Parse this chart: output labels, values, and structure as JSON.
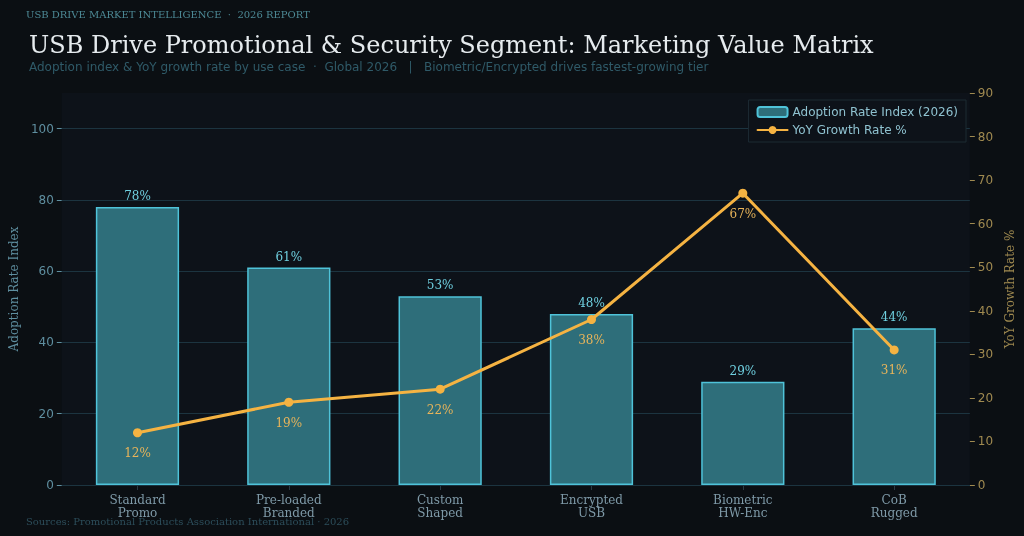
{
  "chart_data": {
    "type": "bar",
    "title": "USB Drive Promotional & Security Segment: Marketing Value Matrix",
    "subtitle": "Adoption index & YoY growth rate by use case  ·  Global 2026   |   Biometric/Encrypted drives fastest-growing tier",
    "annotations": [
      "USB DRIVE MARKET INTELLIGENCE  ·  2026 REPORT",
      "Sources: Promotional Products Association International · 2026"
    ],
    "ylabel": "Adoption Rate Index",
    "y2label": "YoY Growth Rate %",
    "categories": [
      "Standard\nPromo",
      "Pre-loaded\nBranded",
      "Custom\nShaped",
      "Encrypted\nUSB",
      "Biometric\nHW-Enc",
      "CoB\nRugged"
    ],
    "series": [
      {
        "name": "Adoption Rate Index (2026)",
        "color": "#2e6e7a",
        "values": [
          78,
          61,
          53,
          48,
          29,
          44
        ],
        "value_labels": [
          "78%",
          "61%",
          "53%",
          "48%",
          "29%",
          "44%"
        ]
      },
      {
        "name": "YoY Growth Rate %",
        "type": "line",
        "axis": "y2",
        "color": "#f5b342",
        "values": [
          12,
          19,
          22,
          38,
          67,
          31
        ],
        "value_labels": [
          "12%",
          "19%",
          "22%",
          "38%",
          "67%",
          "31%"
        ]
      }
    ],
    "ylim": [
      0,
      110
    ],
    "yticks": [
      0,
      20,
      40,
      60,
      80,
      100
    ],
    "y2lim": [
      0,
      90
    ],
    "y2ticks": [
      0,
      10,
      20,
      30,
      40,
      50,
      60,
      70,
      80,
      90
    ],
    "grid": "y",
    "legend": "top right",
    "marker": "circle",
    "line_style": "solid"
  }
}
